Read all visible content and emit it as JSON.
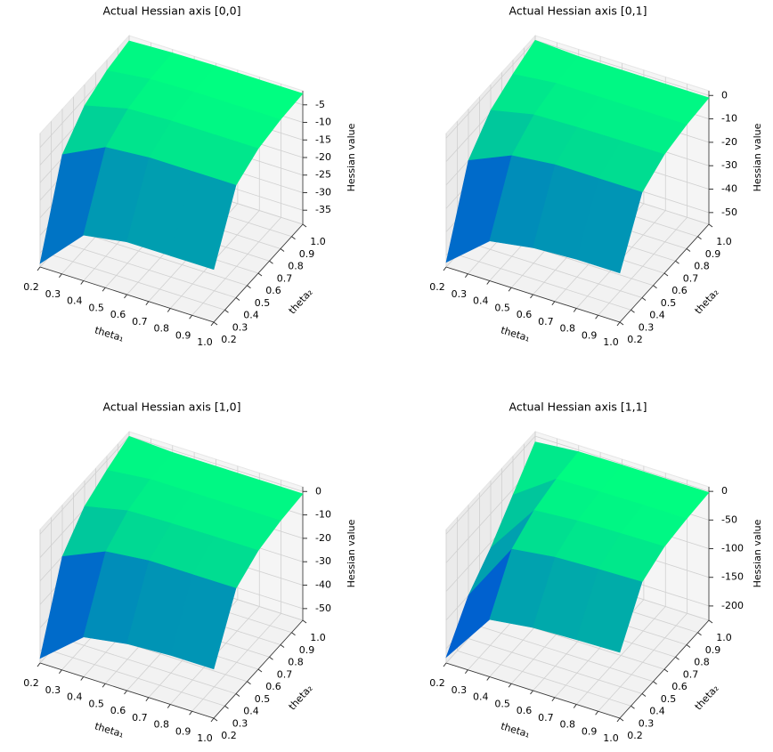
{
  "chart_data": [
    {
      "type": "surface",
      "title": "Actual Hessian axis [0,0]",
      "xlabel": "theta₁",
      "ylabel": "theta₂",
      "zlabel": "Hessian value",
      "x": [
        0.2,
        0.4,
        0.6,
        0.8,
        1.0
      ],
      "y": [
        0.2,
        0.4,
        0.6,
        0.8,
        1.0
      ],
      "z": [
        [
          -38,
          -26,
          -24,
          -24,
          -24
        ],
        [
          -14,
          -8,
          -7,
          -7,
          -7
        ],
        [
          -7,
          -4,
          -3.5,
          -3.5,
          -3.5
        ],
        [
          -4,
          -2.5,
          -2.2,
          -2.2,
          -2.2
        ],
        [
          -2.5,
          -2,
          -1.8,
          -1.8,
          -1.8
        ]
      ],
      "xlim": [
        0.2,
        1.0
      ],
      "ylim": [
        0.2,
        1.0
      ],
      "zlim": [
        -39,
        -1
      ],
      "xticks": [
        0.2,
        0.3,
        0.4,
        0.5,
        0.6,
        0.7,
        0.8,
        0.9,
        {
          "value": 1,
          "label": "1.0"
        }
      ],
      "yticks": [
        0.2,
        0.3,
        0.4,
        0.5,
        0.6,
        0.7,
        0.8,
        0.9,
        {
          "value": 1,
          "label": "1.0"
        }
      ],
      "zticks": [
        -35,
        -30,
        -25,
        -20,
        -15,
        -10,
        -5
      ],
      "cmap": [
        "#0000ff",
        "#00ff80"
      ],
      "grid": true
    },
    {
      "type": "surface",
      "title": "Actual Hessian axis [0,1]",
      "xlabel": "theta₁",
      "ylabel": "theta₂",
      "zlabel": "Hessian value",
      "x": [
        0.2,
        0.4,
        0.6,
        0.8,
        1.0
      ],
      "y": [
        0.2,
        0.4,
        0.6,
        0.8,
        1.0
      ],
      "z": [
        [
          -53,
          -38,
          -35,
          -34,
          -34
        ],
        [
          -20,
          -12,
          -10,
          -10,
          -10
        ],
        [
          -9,
          -5,
          -4.5,
          -4.3,
          -4.3
        ],
        [
          -4,
          -2,
          -2,
          -2,
          -2
        ],
        [
          0,
          -1,
          -1,
          -1,
          -1
        ]
      ],
      "xlim": [
        0.2,
        1.0
      ],
      "ylim": [
        0.2,
        1.0
      ],
      "zlim": [
        -55,
        2
      ],
      "xticks": [
        0.2,
        0.3,
        0.4,
        0.5,
        0.6,
        0.7,
        0.8,
        0.9,
        {
          "value": 1,
          "label": "1.0"
        }
      ],
      "yticks": [
        0.2,
        0.3,
        0.4,
        0.5,
        0.6,
        0.7,
        0.8,
        0.9,
        {
          "value": 1,
          "label": "1.0"
        }
      ],
      "zticks": [
        -50,
        -40,
        -30,
        -20,
        -10,
        0
      ],
      "cmap": [
        "#0000ff",
        "#00ff80"
      ],
      "grid": true
    },
    {
      "type": "surface",
      "title": "Actual Hessian axis [1,0]",
      "xlabel": "theta₁",
      "ylabel": "theta₂",
      "zlabel": "Hessian value",
      "x": [
        0.2,
        0.4,
        0.6,
        0.8,
        1.0
      ],
      "y": [
        0.2,
        0.4,
        0.6,
        0.8,
        1.0
      ],
      "z": [
        [
          -53,
          -38,
          -35,
          -34,
          -34
        ],
        [
          -20,
          -12,
          -10,
          -10,
          -10
        ],
        [
          -9,
          -5,
          -4.5,
          -4.3,
          -4.3
        ],
        [
          -4,
          -2,
          -2,
          -2,
          -2
        ],
        [
          0,
          -1,
          -1,
          -1,
          -1
        ]
      ],
      "xlim": [
        0.2,
        1.0
      ],
      "ylim": [
        0.2,
        1.0
      ],
      "zlim": [
        -55,
        2
      ],
      "xticks": [
        0.2,
        0.3,
        0.4,
        0.5,
        0.6,
        0.7,
        0.8,
        0.9,
        {
          "value": 1,
          "label": "1.0"
        }
      ],
      "yticks": [
        0.2,
        0.3,
        0.4,
        0.5,
        0.6,
        0.7,
        0.8,
        0.9,
        {
          "value": 1,
          "label": "1.0"
        }
      ],
      "zticks": [
        -50,
        -40,
        -30,
        -20,
        -10,
        0
      ],
      "cmap": [
        "#0000ff",
        "#00ff80"
      ],
      "grid": true
    },
    {
      "type": "surface",
      "title": "Actual Hessian axis [1,1]",
      "xlabel": "theta₁",
      "ylabel": "theta₂",
      "zlabel": "Hessian value",
      "x": [
        0.2,
        0.4,
        0.6,
        0.8,
        1.0
      ],
      "y": [
        0.2,
        0.4,
        0.6,
        0.8,
        1.0
      ],
      "z": [
        [
          -215,
          -125,
          -115,
          -112,
          -110
        ],
        [
          -150,
          -45,
          -35,
          -32,
          -30
        ],
        [
          -110,
          -20,
          -14,
          -12,
          -11
        ],
        [
          -60,
          -8,
          -6,
          -5,
          -5
        ],
        [
          -10,
          -3,
          -2,
          -2,
          -2
        ]
      ],
      "xlim": [
        0.2,
        1.0
      ],
      "ylim": [
        0.2,
        1.0
      ],
      "zlim": [
        -225,
        8
      ],
      "xticks": [
        0.2,
        0.3,
        0.4,
        0.5,
        0.6,
        0.7,
        0.8,
        0.9,
        {
          "value": 1,
          "label": "1.0"
        }
      ],
      "yticks": [
        0.2,
        0.3,
        0.4,
        0.5,
        0.6,
        0.7,
        0.8,
        0.9,
        {
          "value": 1,
          "label": "1.0"
        }
      ],
      "zticks": [
        -200,
        -150,
        -100,
        -50,
        0
      ],
      "cmap": [
        "#0000ff",
        "#00ff80"
      ],
      "grid": true
    }
  ]
}
